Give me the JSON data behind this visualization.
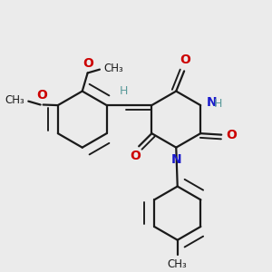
{
  "bg_color": "#ebebeb",
  "bond_color": "#1a1a1a",
  "o_color": "#cc0000",
  "n_color": "#1a1acc",
  "h_color": "#5a9a9a",
  "line_width": 1.6,
  "dbo": 0.022,
  "figsize": [
    3.0,
    3.0
  ],
  "dpi": 100,
  "xlim": [
    0.0,
    1.0
  ],
  "ylim": [
    0.0,
    1.0
  ]
}
